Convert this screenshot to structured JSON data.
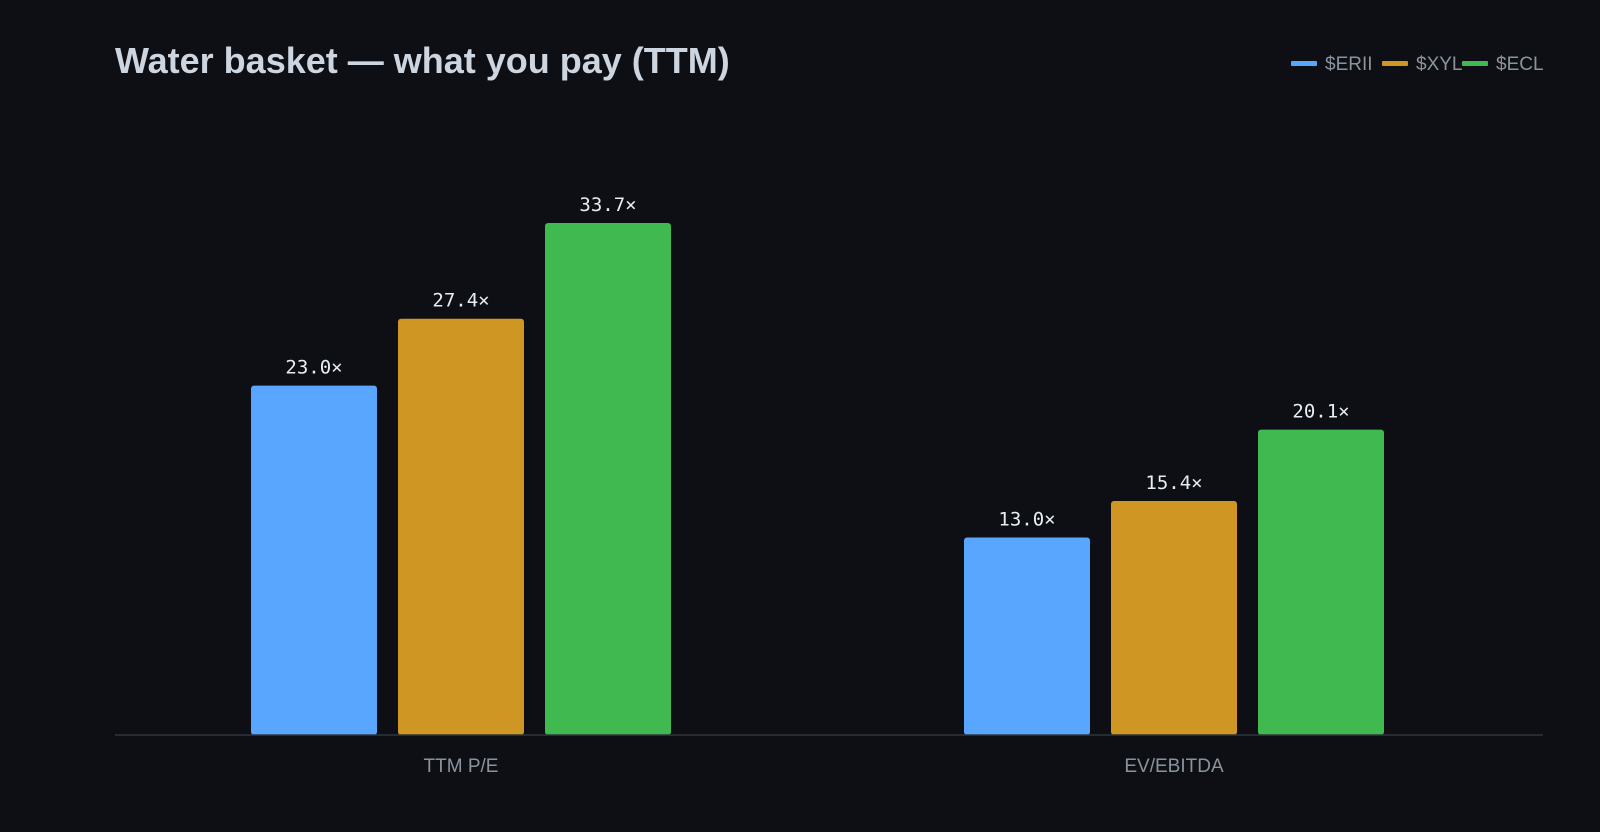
{
  "chart_data": {
    "type": "bar",
    "title": "Water basket — what you pay (TTM)",
    "categories": [
      "TTM P/E",
      "EV/EBITDA"
    ],
    "series": [
      {
        "name": "$ERII",
        "color": "#58a6ff",
        "values": [
          23.0,
          13.0
        ],
        "labels": [
          "23.0×",
          "13.0×"
        ]
      },
      {
        "name": "$XYL",
        "color": "#d09624",
        "values": [
          27.4,
          15.4
        ],
        "labels": [
          "27.4×",
          "15.4×"
        ]
      },
      {
        "name": "$ECL",
        "color": "#3fb950",
        "values": [
          33.7,
          20.1
        ],
        "labels": [
          "33.7×",
          "20.1×"
        ]
      }
    ],
    "ylim": [
      0,
      37
    ],
    "grid": false,
    "legend_position": "top-right",
    "xlabel": "",
    "ylabel": ""
  }
}
